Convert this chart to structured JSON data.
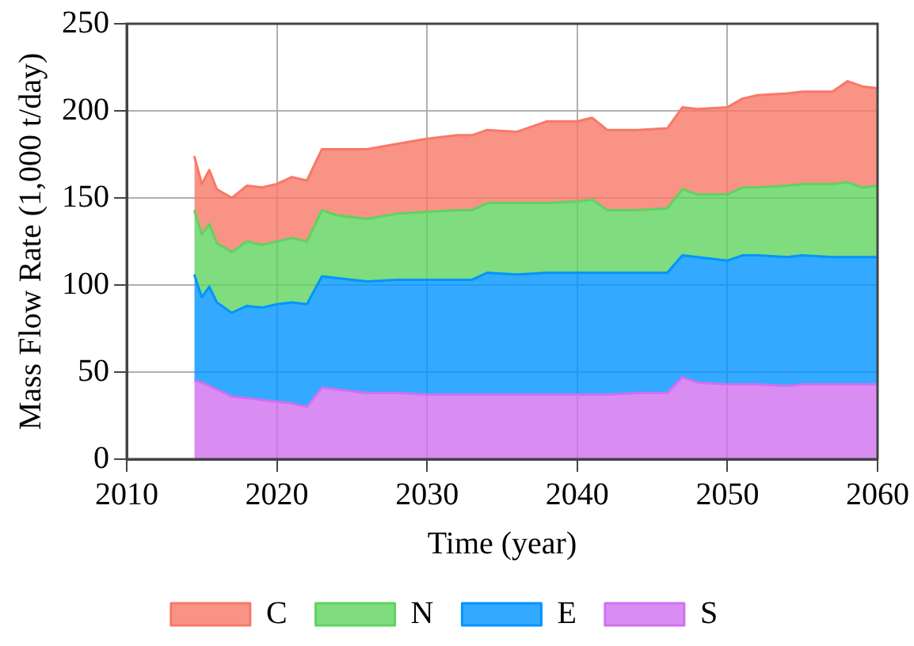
{
  "chart_data": {
    "type": "area",
    "stacked": true,
    "xlabel": "Time (year)",
    "ylabel": "Mass Flow Rate (1,000 t/day)",
    "x": [
      2014.5,
      2015,
      2015.5,
      2016,
      2017,
      2018,
      2019,
      2020,
      2021,
      2022,
      2023,
      2024,
      2026,
      2028,
      2030,
      2032,
      2033,
      2034,
      2036,
      2038,
      2040,
      2041,
      2042,
      2044,
      2046,
      2047,
      2048,
      2050,
      2051,
      2052,
      2054,
      2055,
      2057,
      2058,
      2059,
      2060
    ],
    "xlim": [
      2010,
      2060
    ],
    "xticks": [
      2010,
      2020,
      2030,
      2040,
      2050,
      2060
    ],
    "ylim": [
      0,
      250
    ],
    "yticks": [
      0,
      50,
      100,
      150,
      200,
      250
    ],
    "grid": true,
    "legend": "bottom",
    "series": [
      {
        "name": "S",
        "color": "#d070f0",
        "values": [
          45,
          44,
          42,
          40,
          36,
          35,
          34,
          33,
          32,
          30,
          41,
          40,
          38,
          38,
          37,
          37,
          37,
          37,
          37,
          37,
          37,
          37,
          37,
          38,
          38,
          47,
          44,
          43,
          43,
          43,
          42,
          43,
          43,
          43,
          43,
          43
        ]
      },
      {
        "name": "E",
        "color": "#0095ff",
        "values": [
          61,
          49,
          57,
          50,
          48,
          53,
          53,
          56,
          58,
          59,
          64,
          64,
          64,
          65,
          66,
          66,
          66,
          70,
          69,
          70,
          70,
          70,
          70,
          69,
          69,
          70,
          72,
          71,
          74,
          74,
          74,
          74,
          73,
          73,
          73,
          73
        ]
      },
      {
        "name": "N",
        "color": "#5fd35f",
        "values": [
          37,
          36,
          36,
          34,
          35,
          37,
          36,
          36,
          37,
          36,
          38,
          36,
          36,
          38,
          39,
          40,
          40,
          40,
          41,
          40,
          41,
          42,
          36,
          36,
          37,
          38,
          36,
          38,
          39,
          39,
          41,
          41,
          42,
          43,
          40,
          41
        ]
      },
      {
        "name": "C",
        "color": "#f87868",
        "values": [
          31,
          29,
          31,
          31,
          31,
          32,
          33,
          33,
          35,
          35,
          35,
          38,
          40,
          40,
          42,
          43,
          43,
          42,
          41,
          47,
          46,
          47,
          46,
          46,
          46,
          47,
          49,
          50,
          51,
          53,
          53,
          53,
          53,
          58,
          58,
          56
        ]
      }
    ]
  }
}
